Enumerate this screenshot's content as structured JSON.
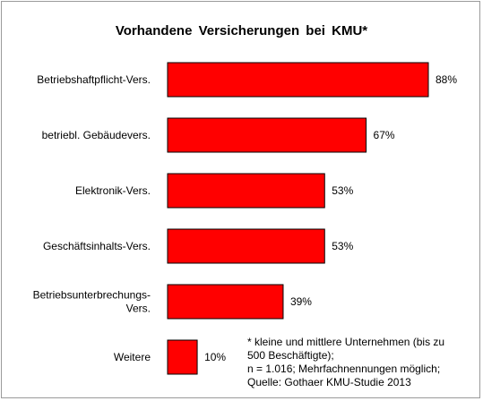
{
  "chart_data": {
    "type": "bar",
    "orientation": "horizontal",
    "title": "Vorhandene Versicherungen bei KMU*",
    "categories": [
      [
        "Betriebshaftpflicht-Vers."
      ],
      [
        "betriebl. Gebäudevers."
      ],
      [
        "Elektronik-Vers."
      ],
      [
        "Geschäftsinhalts-Vers."
      ],
      [
        "Betriebsunterbrechungs-",
        "Vers."
      ],
      [
        "Weitere"
      ]
    ],
    "values": [
      88,
      67,
      53,
      53,
      39,
      10
    ],
    "value_labels": [
      "88%",
      "67%",
      "53%",
      "53%",
      "39%",
      "10%"
    ],
    "xlim": [
      0,
      100
    ],
    "grid": false,
    "legend": "none",
    "bar_color": "#ff0000",
    "bar_edge_color": "#000000"
  },
  "footnote": [
    "* kleine und mittlere Unternehmen (bis zu",
    "500 Beschäftigte);",
    "n = 1.016; Mehrfachnennungen möglich;",
    "Quelle: Gothaer KMU-Studie 2013"
  ]
}
